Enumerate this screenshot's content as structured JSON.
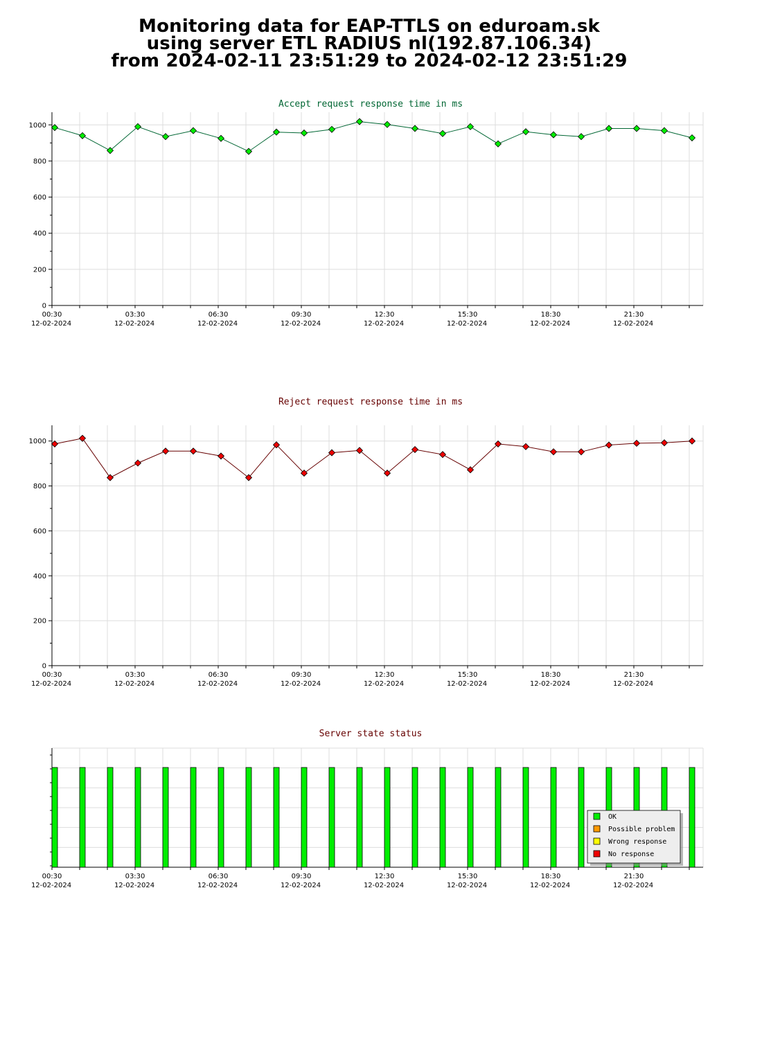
{
  "header": {
    "line1": "Monitoring data for EAP-TTLS on eduroam.sk",
    "line2": "using server ETL RADIUS nl(192.87.106.34)",
    "line3": "from 2024-02-11 23:51:29 to 2024-02-12 23:51:29"
  },
  "time_labels": [
    "00:30",
    "03:30",
    "06:30",
    "09:30",
    "12:30",
    "15:30",
    "18:30",
    "21:30"
  ],
  "date_label": "12-02-2024",
  "colors": {
    "accept_line": "#006633",
    "accept_marker": "#00ee00",
    "reject_line": "#660000",
    "reject_marker": "#ee0000",
    "bar_ok": "#00ee00",
    "possible_problem": "#ff9900",
    "wrong_response": "#ffff00",
    "no_response": "#ee0000"
  },
  "chart_data": [
    {
      "type": "line",
      "title": "Accept request response time in ms",
      "x_time_steps": 24,
      "ylim": [
        0,
        1070
      ],
      "yticks": [
        0,
        200,
        400,
        600,
        800,
        1000
      ],
      "grid": true,
      "series": [
        {
          "values": [
            985,
            940,
            858,
            990,
            935,
            968,
            925,
            853,
            960,
            955,
            975,
            1018,
            1002,
            980,
            952,
            990,
            895,
            962,
            945,
            935,
            980,
            980,
            968,
            928
          ]
        }
      ]
    },
    {
      "type": "line",
      "title": "Reject request response time in ms",
      "x_time_steps": 24,
      "ylim": [
        0,
        1070
      ],
      "yticks": [
        0,
        200,
        400,
        600,
        800,
        1000
      ],
      "grid": true,
      "series": [
        {
          "values": [
            987,
            1012,
            837,
            902,
            955,
            955,
            933,
            837,
            983,
            857,
            948,
            958,
            857,
            962,
            940,
            872,
            987,
            975,
            952,
            952,
            982,
            990,
            992,
            1000
          ]
        }
      ]
    },
    {
      "type": "bar",
      "title": "Server state status",
      "statuses": [
        "OK",
        "OK",
        "OK",
        "OK",
        "OK",
        "OK",
        "OK",
        "OK",
        "OK",
        "OK",
        "OK",
        "OK",
        "OK",
        "OK",
        "OK",
        "OK",
        "OK",
        "OK",
        "OK",
        "OK",
        "OK",
        "OK",
        "OK",
        "OK"
      ],
      "legend": [
        "OK",
        "Possible problem",
        "Wrong response",
        "No response"
      ],
      "legend_position": "bottom-right"
    }
  ]
}
